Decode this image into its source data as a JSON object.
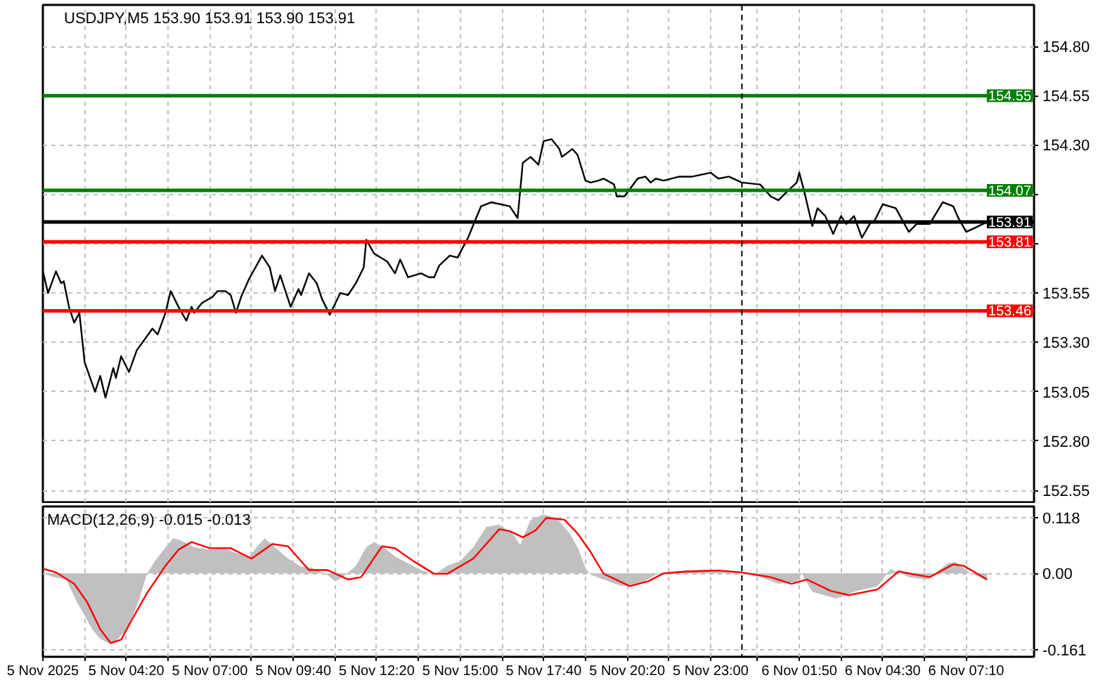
{
  "chart_data": [
    {
      "type": "line",
      "title": "USDJPY,M5  153.90 153.91 153.90 153.91",
      "x": [
        "2025-11-05T01:40",
        "2025-11-05T01:50",
        "2025-11-05T02:05",
        "2025-11-05T02:15",
        "2025-11-05T02:20",
        "2025-11-05T02:30",
        "2025-11-05T02:40",
        "2025-11-05T02:50",
        "2025-11-05T03:00",
        "2025-11-05T03:20",
        "2025-11-05T03:30",
        "2025-11-05T03:40",
        "2025-11-05T03:55",
        "2025-11-05T04:00",
        "2025-11-05T04:10",
        "2025-11-05T04:25",
        "2025-11-05T04:40",
        "2025-11-05T05:10",
        "2025-11-05T05:20",
        "2025-11-05T05:35",
        "2025-11-05T05:45",
        "2025-11-05T06:00",
        "2025-11-05T06:15",
        "2025-11-05T06:25",
        "2025-11-05T06:30",
        "2025-11-05T06:45",
        "2025-11-05T07:05",
        "2025-11-05T07:15",
        "2025-11-05T07:30",
        "2025-11-05T07:40",
        "2025-11-05T07:50",
        "2025-11-05T08:00",
        "2025-11-05T08:15",
        "2025-11-05T08:40",
        "2025-11-05T08:55",
        "2025-11-05T09:05",
        "2025-11-05T09:15",
        "2025-11-05T09:35",
        "2025-11-05T09:50",
        "2025-11-05T09:55",
        "2025-11-05T10:10",
        "2025-11-05T10:25",
        "2025-11-05T10:35",
        "2025-11-05T10:50",
        "2025-11-05T11:10",
        "2025-11-05T11:25",
        "2025-11-05T11:40",
        "2025-11-05T11:55",
        "2025-11-05T12:00",
        "2025-11-05T12:15",
        "2025-11-05T12:40",
        "2025-11-05T12:55",
        "2025-11-05T13:05",
        "2025-11-05T13:20",
        "2025-11-05T13:45",
        "2025-11-05T14:00",
        "2025-11-05T14:10",
        "2025-11-05T14:20",
        "2025-11-05T14:40",
        "2025-11-05T14:55",
        "2025-11-05T15:15",
        "2025-11-05T15:40",
        "2025-11-05T16:00",
        "2025-11-05T16:35",
        "2025-11-05T16:50",
        "2025-11-05T17:00",
        "2025-11-05T17:15",
        "2025-11-05T17:30",
        "2025-11-05T17:40",
        "2025-11-05T17:55",
        "2025-11-05T18:10",
        "2025-11-05T18:15",
        "2025-11-05T18:35",
        "2025-11-05T18:45",
        "2025-11-05T19:00",
        "2025-11-05T19:10",
        "2025-11-05T19:25",
        "2025-11-05T19:35",
        "2025-11-05T19:55",
        "2025-11-05T20:00",
        "2025-11-05T20:15",
        "2025-11-05T20:40",
        "2025-11-05T20:55",
        "2025-11-05T21:05",
        "2025-11-05T21:15",
        "2025-11-05T21:30",
        "2025-11-05T22:00",
        "2025-11-05T22:25",
        "2025-11-05T23:00",
        "2025-11-05T23:15",
        "2025-11-05T23:35",
        "2025-11-06T00:00",
        "2025-11-06T00:35",
        "2025-11-06T00:55",
        "2025-11-06T01:10",
        "2025-11-06T01:25",
        "2025-11-06T01:45",
        "2025-11-06T01:50",
        "2025-11-06T02:00",
        "2025-11-06T02:15",
        "2025-11-06T02:25",
        "2025-11-06T02:40",
        "2025-11-06T02:55",
        "2025-11-06T03:10",
        "2025-11-06T03:20",
        "2025-11-06T03:35",
        "2025-11-06T03:50",
        "2025-11-06T04:05",
        "2025-11-06T04:15",
        "2025-11-06T04:30",
        "2025-11-06T04:55",
        "2025-11-06T05:20",
        "2025-11-06T05:35",
        "2025-11-06T06:00",
        "2025-11-06T06:25",
        "2025-11-06T06:45",
        "2025-11-06T06:55",
        "2025-11-06T07:10",
        "2025-11-06T07:50"
      ],
      "values": [
        153.66,
        153.55,
        153.66,
        153.6,
        153.61,
        153.48,
        153.4,
        153.45,
        153.2,
        153.05,
        153.13,
        153.02,
        153.17,
        153.12,
        153.23,
        153.15,
        153.26,
        153.37,
        153.34,
        153.45,
        153.56,
        153.48,
        153.41,
        153.48,
        153.45,
        153.5,
        153.53,
        153.56,
        153.56,
        153.54,
        153.45,
        153.53,
        153.62,
        153.74,
        153.68,
        153.56,
        153.64,
        153.48,
        153.57,
        153.54,
        153.65,
        153.6,
        153.52,
        153.44,
        153.55,
        153.54,
        153.6,
        153.68,
        153.82,
        153.75,
        153.71,
        153.65,
        153.72,
        153.63,
        153.65,
        153.63,
        153.63,
        153.69,
        153.74,
        153.73,
        153.83,
        153.99,
        154.01,
        153.99,
        153.93,
        154.21,
        154.24,
        154.2,
        154.32,
        154.33,
        154.28,
        154.24,
        154.28,
        154.25,
        154.12,
        154.11,
        154.12,
        154.13,
        154.1,
        154.04,
        154.04,
        154.13,
        154.14,
        154.11,
        154.13,
        154.12,
        154.14,
        154.14,
        154.16,
        154.13,
        154.14,
        154.11,
        154.1,
        154.04,
        154.02,
        154.06,
        154.11,
        154.16,
        154.06,
        153.89,
        153.98,
        153.94,
        153.85,
        153.94,
        153.9,
        153.94,
        153.83,
        153.9,
        153.92,
        154.0,
        153.98,
        153.86,
        153.9,
        153.9,
        154.01,
        153.99,
        153.93,
        153.86,
        153.91
      ],
      "color": "#000000",
      "xlim": [
        "2025-11-05T01:40",
        "2025-11-06T09:20"
      ],
      "xticks": [
        {
          "value": "2025-11-05T01:40",
          "label": null
        },
        {
          "value": "2025-11-05T03:00",
          "label": null
        },
        {
          "value": "2025-11-05T04:20",
          "label": null
        },
        {
          "value": "2025-11-05T05:40",
          "label": null
        },
        {
          "value": "2025-11-05T07:00",
          "label": null
        },
        {
          "value": "2025-11-05T08:20",
          "label": null
        },
        {
          "value": "2025-11-05T09:40",
          "label": null
        },
        {
          "value": "2025-11-05T11:00",
          "label": null
        },
        {
          "value": "2025-11-05T12:20",
          "label": null
        },
        {
          "value": "2025-11-05T13:40",
          "label": null
        },
        {
          "value": "2025-11-05T15:00",
          "label": null
        },
        {
          "value": "2025-11-05T16:20",
          "label": null
        },
        {
          "value": "2025-11-05T17:40",
          "label": null
        },
        {
          "value": "2025-11-05T19:00",
          "label": null
        },
        {
          "value": "2025-11-05T20:20",
          "label": null
        },
        {
          "value": "2025-11-05T21:40",
          "label": null
        },
        {
          "value": "2025-11-05T23:00",
          "label": null
        },
        {
          "value": "2025-11-06T00:30",
          "label": null
        },
        {
          "value": "2025-11-06T01:50",
          "label": null
        },
        {
          "value": "2025-11-06T03:10",
          "label": null
        },
        {
          "value": "2025-11-06T04:30",
          "label": null
        },
        {
          "value": "2025-11-06T05:50",
          "label": null
        },
        {
          "value": "2025-11-06T07:10",
          "label": null
        }
      ],
      "ylim": [
        152.49,
        155.01
      ],
      "yticks": [
        {
          "value": 154.8,
          "label": "154.80"
        },
        {
          "value": 154.55,
          "label": "154.55"
        },
        {
          "value": 154.3,
          "label": "154.30"
        },
        {
          "value": 154.05,
          "label": null
        },
        {
          "value": 153.8,
          "label": null
        },
        {
          "value": 153.55,
          "label": "153.55"
        },
        {
          "value": 153.3,
          "label": "153.30"
        },
        {
          "value": 153.05,
          "label": "153.05"
        },
        {
          "value": 152.8,
          "label": "152.80"
        },
        {
          "value": 152.55,
          "label": "152.55"
        }
      ],
      "ref_lines": [
        {
          "axis": "y",
          "value": 154.55,
          "label": "154.55",
          "color": "#007f00"
        },
        {
          "axis": "y",
          "value": 154.07,
          "label": "154.07",
          "color": "#007f00"
        },
        {
          "axis": "y",
          "value": 153.91,
          "label": "153.91",
          "color": "#000000"
        },
        {
          "axis": "y",
          "value": 153.81,
          "label": "153.81",
          "color": "#ff0000"
        },
        {
          "axis": "y",
          "value": 153.46,
          "label": "153.46",
          "color": "#ff0000"
        },
        {
          "axis": "x",
          "value": "2025-11-06T00:00",
          "color": "#000000",
          "line_style": "dashed"
        }
      ],
      "grid": true,
      "tick_labels": "y"
    },
    {
      "type": "line",
      "title": "MACD(12,26,9) -0.015 -0.013",
      "series": [
        {
          "type": "area",
          "color": "#c0c0c0",
          "x": [
            "2025-11-05T01:40",
            "2025-11-05T02:00",
            "2025-11-05T02:25",
            "2025-11-05T02:45",
            "2025-11-05T03:00",
            "2025-11-05T03:15",
            "2025-11-05T03:30",
            "2025-11-05T03:45",
            "2025-11-05T04:00",
            "2025-11-05T04:20",
            "2025-11-05T04:40",
            "2025-11-05T05:00",
            "2025-11-05T05:15",
            "2025-11-05T05:35",
            "2025-11-05T05:50",
            "2025-11-05T06:05",
            "2025-11-05T06:30",
            "2025-11-05T07:00",
            "2025-11-05T07:30",
            "2025-11-05T07:45",
            "2025-11-05T08:15",
            "2025-11-05T08:30",
            "2025-11-05T08:45",
            "2025-11-05T09:00",
            "2025-11-05T09:30",
            "2025-11-05T09:55",
            "2025-11-05T10:15",
            "2025-11-05T10:45",
            "2025-11-05T11:00",
            "2025-11-05T11:15",
            "2025-11-05T11:40",
            "2025-11-05T12:00",
            "2025-11-05T12:15",
            "2025-11-05T12:30",
            "2025-11-05T12:55",
            "2025-11-05T13:20",
            "2025-11-05T13:45",
            "2025-11-05T14:10",
            "2025-11-05T14:35",
            "2025-11-05T15:00",
            "2025-11-05T15:25",
            "2025-11-05T15:50",
            "2025-11-05T16:15",
            "2025-11-05T16:40",
            "2025-11-05T16:55",
            "2025-11-05T17:15",
            "2025-11-05T17:40",
            "2025-11-05T18:05",
            "2025-11-05T18:30",
            "2025-11-05T18:45",
            "2025-11-05T19:00",
            "2025-11-05T19:10",
            "2025-11-05T19:35",
            "2025-11-05T20:10",
            "2025-11-05T20:45",
            "2025-11-05T21:15",
            "2025-11-05T22:00",
            "2025-11-05T22:55",
            "2025-11-05T23:45",
            "2025-11-06T00:35",
            "2025-11-06T01:10",
            "2025-11-06T01:45",
            "2025-11-06T01:55",
            "2025-11-06T02:15",
            "2025-11-06T03:00",
            "2025-11-06T03:40",
            "2025-11-06T04:20",
            "2025-11-06T04:45",
            "2025-11-06T05:20",
            "2025-11-06T05:55",
            "2025-11-06T06:35",
            "2025-11-06T06:50",
            "2025-11-06T07:15",
            "2025-11-06T07:50"
          ],
          "values": [
            0,
            -0.008,
            -0.013,
            -0.061,
            -0.089,
            -0.119,
            -0.138,
            -0.147,
            -0.143,
            -0.119,
            -0.07,
            0,
            0.026,
            0.055,
            0.074,
            0.069,
            0.055,
            0.05,
            0.053,
            0.045,
            0.036,
            0.055,
            0.074,
            0.06,
            0.031,
            0.014,
            0.012,
            -0.003,
            -0.017,
            -0.008,
            0.016,
            0.055,
            0.066,
            0.057,
            0.036,
            0.021,
            0.007,
            -0.003,
            0.016,
            0.026,
            0.055,
            0.098,
            0.103,
            0.084,
            0.06,
            0.113,
            0.124,
            0.117,
            0.084,
            0.055,
            0.012,
            -0.003,
            -0.013,
            -0.027,
            -0.022,
            -0.003,
            0.005,
            0.007,
            0.003,
            -0.008,
            -0.022,
            -0.017,
            -0.001,
            -0.039,
            -0.053,
            -0.037,
            -0.027,
            0.009,
            -0.008,
            -0.013,
            0.021,
            0.024,
            0.002,
            -0.015
          ]
        },
        {
          "type": "line",
          "color": "#ff0000",
          "x": [
            "2025-11-05T01:40",
            "2025-11-05T02:05",
            "2025-11-05T02:40",
            "2025-11-05T03:05",
            "2025-11-05T03:30",
            "2025-11-05T03:50",
            "2025-11-05T04:10",
            "2025-11-05T04:30",
            "2025-11-05T05:00",
            "2025-11-05T05:35",
            "2025-11-05T06:00",
            "2025-11-05T06:25",
            "2025-11-05T07:00",
            "2025-11-05T07:40",
            "2025-11-05T08:20",
            "2025-11-05T09:00",
            "2025-11-05T09:30",
            "2025-11-05T10:10",
            "2025-11-05T10:45",
            "2025-11-05T11:25",
            "2025-11-05T11:50",
            "2025-11-05T12:30",
            "2025-11-05T12:55",
            "2025-11-05T13:30",
            "2025-11-05T14:10",
            "2025-11-05T14:35",
            "2025-11-05T15:25",
            "2025-11-05T16:15",
            "2025-11-05T16:35",
            "2025-11-05T17:00",
            "2025-11-05T17:25",
            "2025-11-05T17:45",
            "2025-11-05T18:20",
            "2025-11-05T18:45",
            "2025-11-05T19:10",
            "2025-11-05T19:35",
            "2025-11-05T20:25",
            "2025-11-05T21:00",
            "2025-11-05T21:30",
            "2025-11-05T22:15",
            "2025-11-05T23:15",
            "2025-11-06T00:00",
            "2025-11-06T00:55",
            "2025-11-06T01:35",
            "2025-11-06T02:05",
            "2025-11-06T02:50",
            "2025-11-06T03:25",
            "2025-11-06T04:20",
            "2025-11-06T05:00",
            "2025-11-06T05:35",
            "2025-11-06T06:00",
            "2025-11-06T06:45",
            "2025-11-06T07:05",
            "2025-11-06T07:50"
          ],
          "values": [
            0.01,
            0.002,
            -0.022,
            -0.061,
            -0.118,
            -0.147,
            -0.14,
            -0.099,
            -0.041,
            0.016,
            0.05,
            0.066,
            0.053,
            0.053,
            0.031,
            0.062,
            0.057,
            0.007,
            0.007,
            -0.013,
            -0.008,
            0.057,
            0.053,
            0.026,
            -0.001,
            -0.001,
            0.031,
            0.093,
            0.089,
            0.076,
            0.091,
            0.117,
            0.113,
            0.084,
            0.045,
            -0.001,
            -0.027,
            -0.017,
            0,
            0.004,
            0.006,
            0.002,
            -0.008,
            -0.022,
            -0.013,
            -0.037,
            -0.046,
            -0.034,
            0.004,
            -0.003,
            -0.008,
            0.019,
            0.016,
            -0.013
          ]
        }
      ],
      "xlim": [
        "2025-11-05T01:40",
        "2025-11-06T09:20"
      ],
      "xticks": [
        {
          "value": "2025-11-05T01:40",
          "label": "5 Nov 2025"
        },
        {
          "value": "2025-11-05T03:00",
          "label": null
        },
        {
          "value": "2025-11-05T04:20",
          "label": "5 Nov 04:20"
        },
        {
          "value": "2025-11-05T05:40",
          "label": null
        },
        {
          "value": "2025-11-05T07:00",
          "label": "5 Nov 07:00"
        },
        {
          "value": "2025-11-05T08:20",
          "label": null
        },
        {
          "value": "2025-11-05T09:40",
          "label": "5 Nov 09:40"
        },
        {
          "value": "2025-11-05T11:00",
          "label": null
        },
        {
          "value": "2025-11-05T12:20",
          "label": "5 Nov 12:20"
        },
        {
          "value": "2025-11-05T13:40",
          "label": null
        },
        {
          "value": "2025-11-05T15:00",
          "label": "5 Nov 15:00"
        },
        {
          "value": "2025-11-05T16:20",
          "label": null
        },
        {
          "value": "2025-11-05T17:40",
          "label": "5 Nov 17:40"
        },
        {
          "value": "2025-11-05T19:00",
          "label": null
        },
        {
          "value": "2025-11-05T20:20",
          "label": "5 Nov 20:20"
        },
        {
          "value": "2025-11-05T21:40",
          "label": null
        },
        {
          "value": "2025-11-05T23:00",
          "label": "5 Nov 23:00"
        },
        {
          "value": "2025-11-06T00:30",
          "label": null
        },
        {
          "value": "2025-11-06T01:50",
          "label": "6 Nov 01:50"
        },
        {
          "value": "2025-11-06T03:10",
          "label": null
        },
        {
          "value": "2025-11-06T04:30",
          "label": "6 Nov 04:30"
        },
        {
          "value": "2025-11-06T05:50",
          "label": null
        },
        {
          "value": "2025-11-06T07:10",
          "label": "6 Nov 07:10"
        }
      ],
      "ylim": [
        -0.176,
        0.141
      ],
      "yticks": [
        {
          "value": 0.118,
          "label": "0.118"
        },
        {
          "value": 0,
          "label": "0.00"
        },
        {
          "value": -0.161,
          "label": "-0.161"
        }
      ],
      "ref_lines": [
        {
          "axis": "x",
          "value": "2025-11-06T00:00",
          "color": "#000000",
          "line_style": "dashed"
        }
      ],
      "grid": true
    }
  ]
}
